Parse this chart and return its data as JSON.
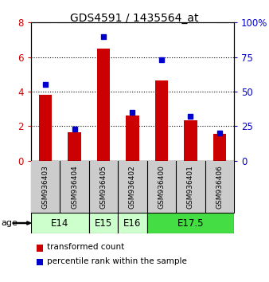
{
  "title": "GDS4591 / 1435564_at",
  "samples": [
    "GSM936403",
    "GSM936404",
    "GSM936405",
    "GSM936402",
    "GSM936400",
    "GSM936401",
    "GSM936406"
  ],
  "transformed_count": [
    3.8,
    1.65,
    6.5,
    2.6,
    4.65,
    2.35,
    1.55
  ],
  "percentile_rank": [
    55,
    23,
    90,
    35,
    73,
    32,
    20
  ],
  "groups": [
    {
      "label": "E14",
      "indices": [
        0,
        1
      ],
      "color": "#ccffcc"
    },
    {
      "label": "E15",
      "indices": [
        2
      ],
      "color": "#ccffcc"
    },
    {
      "label": "E16",
      "indices": [
        3
      ],
      "color": "#ccffcc"
    },
    {
      "label": "E17.5",
      "indices": [
        4,
        5,
        6
      ],
      "color": "#44dd44"
    }
  ],
  "bar_color": "#cc0000",
  "dot_color": "#0000cc",
  "left_ylim": [
    0,
    8
  ],
  "right_ylim": [
    0,
    100
  ],
  "left_yticks": [
    0,
    2,
    4,
    6,
    8
  ],
  "right_yticks": [
    0,
    25,
    50,
    75,
    100
  ],
  "right_yticklabels": [
    "0",
    "25",
    "50",
    "75",
    "100%"
  ],
  "left_ycolor": "#cc0000",
  "right_ycolor": "#0000cc",
  "age_label": "age",
  "legend_bar_label": "transformed count",
  "legend_dot_label": "percentile rank within the sample",
  "sample_box_color": "#cccccc"
}
